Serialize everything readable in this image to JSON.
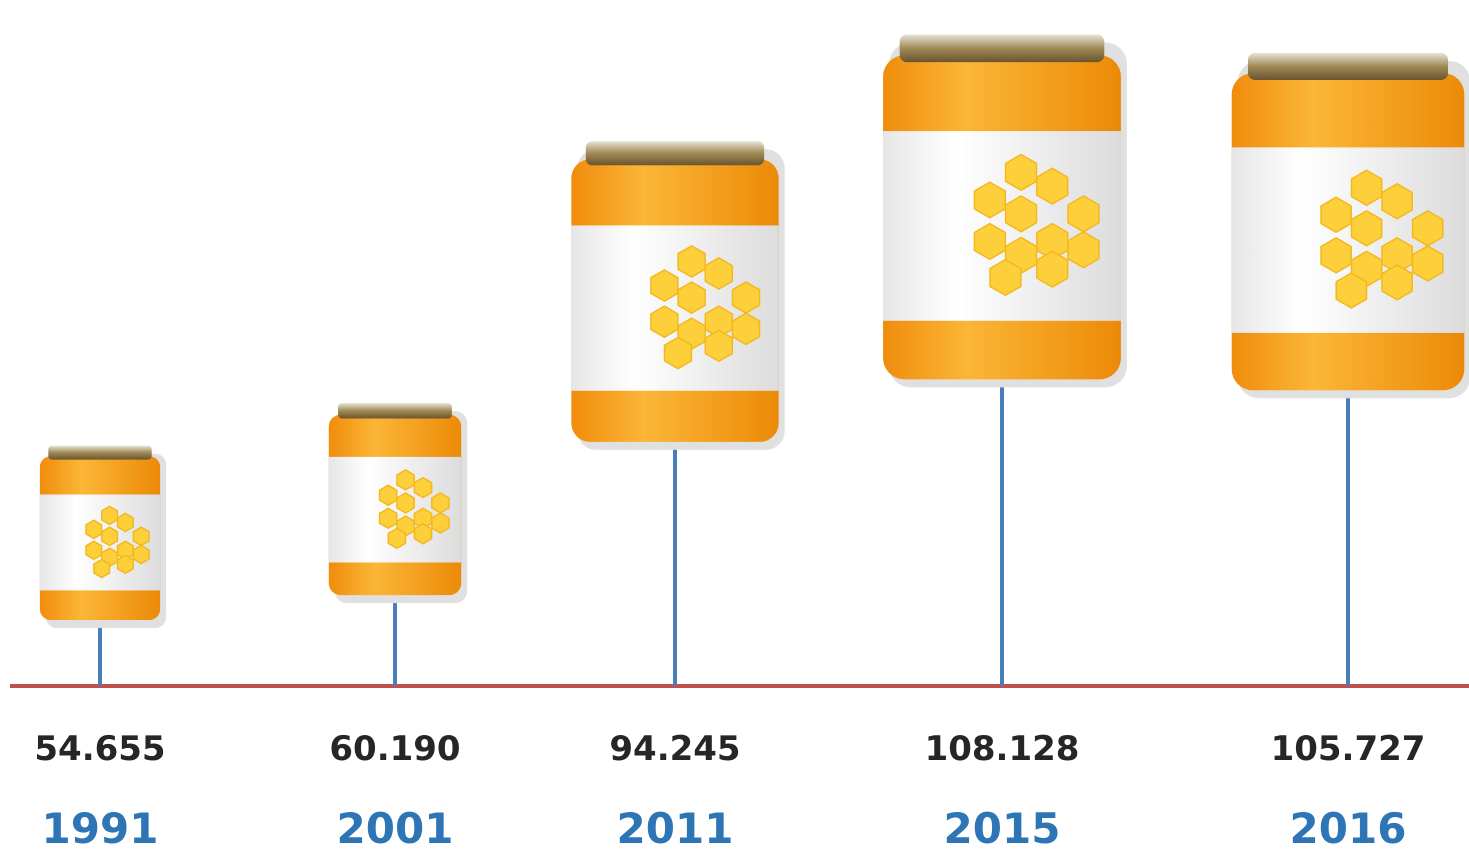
{
  "chart_data": {
    "type": "pictorial",
    "categories": [
      "1991",
      "2001",
      "2011",
      "2015",
      "2016"
    ],
    "values": [
      54655,
      60190,
      94245,
      108128,
      105727
    ],
    "value_labels": [
      "54.655",
      "60.190",
      "94.245",
      "108.128",
      "105.727"
    ],
    "color": "#f7a21b"
  }
}
